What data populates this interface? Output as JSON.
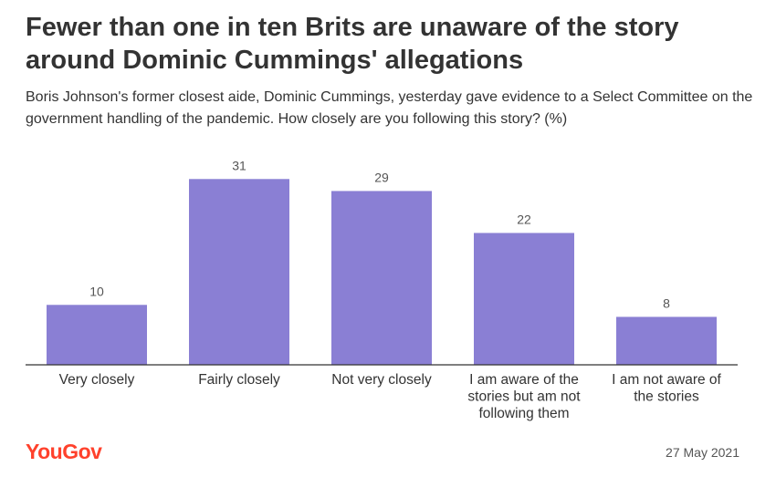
{
  "header": {
    "title": "Fewer than one in ten Brits are unaware of the story around Dominic Cummings' allegations",
    "subtitle": "Boris Johnson's former closest aide, Dominic Cummings, yesterday gave evidence to a Select Committee on the government handling of the pandemic. How closely are you following this story? (%)"
  },
  "footer": {
    "logo": "YouGov",
    "date": "27 May 2021"
  },
  "colors": {
    "bar": "#8a7fd4",
    "axis": "#333333",
    "brand": "#ff412c"
  },
  "chart_data": {
    "type": "bar",
    "categories": [
      [
        "Very closely"
      ],
      [
        "Fairly closely"
      ],
      [
        "Not very closely"
      ],
      [
        "I am aware of the",
        "stories but am not",
        "following them"
      ],
      [
        "I am not aware of",
        "the stories"
      ]
    ],
    "values": [
      10,
      31,
      29,
      22,
      8
    ],
    "title": "Fewer than one in ten Brits are unaware of the story around Dominic Cummings' allegations",
    "xlabel": "",
    "ylabel": "",
    "ylim": [
      0,
      35
    ],
    "grid": false,
    "data_labels": true
  }
}
